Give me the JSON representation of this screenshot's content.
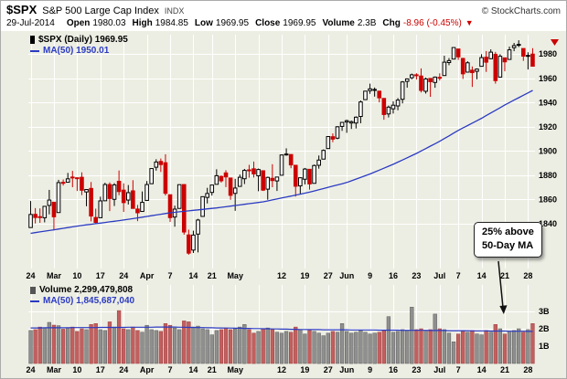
{
  "header": {
    "symbol": "$SPX",
    "title": "S&P 500 Large Cap Index",
    "exchange": "INDX",
    "source": "© StockCharts.com",
    "date": "29-Jul-2014",
    "quote": {
      "open": {
        "label": "Open",
        "value": "1980.03"
      },
      "high": {
        "label": "High",
        "value": "1984.85"
      },
      "low": {
        "label": "Low",
        "value": "1969.95"
      },
      "close": {
        "label": "Close",
        "value": "1969.95"
      },
      "volume": {
        "label": "Volume",
        "value": "2.3B"
      },
      "chg": {
        "label": "Chg",
        "value": "-8.96 (-0.45%)",
        "direction": "down"
      }
    }
  },
  "price_pane": {
    "legend_symbol": "$SPX (Daily) 1969.95",
    "legend_ma": "MA(50) 1950.01"
  },
  "volume_pane": {
    "legend_volume": "Volume 2,299,479,808",
    "legend_ma": "MA(50) 1,845,687,040"
  },
  "annotation": {
    "line1": "25% above",
    "line2": "50-Day MA"
  },
  "colors": {
    "background": "#edeee3",
    "grid": "#ffffff",
    "up_candle": "#000000",
    "up_fill": "#ffffff",
    "down_candle": "#cc0000",
    "ma_line": "#2b3bc2",
    "vol_up": "#8f8f8f",
    "vol_down": "#c25f5f",
    "text": "#000000",
    "change_negative": "#cc0000"
  },
  "chart_data": {
    "type": "candlestick",
    "symbol": "$SPX",
    "timeframe": "Daily",
    "date_range": "24-Feb-2014 to 29-Jul-2014",
    "last_close": 1969.95,
    "price_axis": {
      "ticks": [
        1840,
        1860,
        1880,
        1900,
        1920,
        1940,
        1960,
        1980
      ],
      "range": [
        1803,
        1996
      ]
    },
    "volume_axis": {
      "unit": "billions",
      "ticks": [
        {
          "v": 1,
          "l": "1B"
        },
        {
          "v": 2,
          "l": "2B"
        },
        {
          "v": 3,
          "l": "3B"
        }
      ]
    },
    "x_ticks": [
      {
        "i": 0,
        "l": "24"
      },
      {
        "i": 5,
        "l": "Mar"
      },
      {
        "i": 10,
        "l": "10"
      },
      {
        "i": 15,
        "l": "17"
      },
      {
        "i": 20,
        "l": "24"
      },
      {
        "i": 25,
        "l": "Apr"
      },
      {
        "i": 30,
        "l": "7"
      },
      {
        "i": 35,
        "l": "14"
      },
      {
        "i": 39,
        "l": "21"
      },
      {
        "i": 44,
        "l": "May"
      },
      {
        "i": 49,
        "l": ""
      },
      {
        "i": 54,
        "l": "12"
      },
      {
        "i": 59,
        "l": "19"
      },
      {
        "i": 64,
        "l": "27"
      },
      {
        "i": 68,
        "l": "Jun"
      },
      {
        "i": 73,
        "l": "9"
      },
      {
        "i": 78,
        "l": "16"
      },
      {
        "i": 83,
        "l": "23"
      },
      {
        "i": 88,
        "l": "Jul"
      },
      {
        "i": 92,
        "l": "7"
      },
      {
        "i": 97,
        "l": "14"
      },
      {
        "i": 102,
        "l": "21"
      },
      {
        "i": 107,
        "l": "28"
      }
    ],
    "candles": [
      [
        1836.8,
        1858.7,
        1836.8,
        1847.6
      ],
      [
        1847.7,
        1852.9,
        1840.2,
        1845.1
      ],
      [
        1845.8,
        1852.6,
        1840.7,
        1845.2
      ],
      [
        1844.9,
        1854.5,
        1841.1,
        1854.3
      ],
      [
        1855.1,
        1867.9,
        1847.7,
        1859.5
      ],
      [
        1857.7,
        1857.7,
        1834.4,
        1845.7
      ],
      [
        1849.2,
        1876.2,
        1849.2,
        1873.9
      ],
      [
        1874.1,
        1876.5,
        1871.5,
        1873.8
      ],
      [
        1874.2,
        1881.9,
        1874.2,
        1877.0
      ],
      [
        1878.5,
        1883.6,
        1870.1,
        1878.0
      ],
      [
        1877.9,
        1877.9,
        1867.0,
        1877.2
      ],
      [
        1878.3,
        1882.4,
        1863.6,
        1867.6
      ],
      [
        1866.2,
        1868.4,
        1854.4,
        1868.2
      ],
      [
        1869.1,
        1874.4,
        1841.9,
        1846.3
      ],
      [
        1845.1,
        1852.4,
        1839.6,
        1841.1
      ],
      [
        1844.9,
        1862.3,
        1844.9,
        1858.8
      ],
      [
        1858.9,
        1873.8,
        1858.9,
        1872.3
      ],
      [
        1872.3,
        1874.1,
        1850.4,
        1860.8
      ],
      [
        1860.1,
        1873.5,
        1854.6,
        1872.0
      ],
      [
        1875.0,
        1883.9,
        1863.5,
        1866.5
      ],
      [
        1867.7,
        1873.3,
        1849.7,
        1857.4
      ],
      [
        1859.5,
        1871.9,
        1855.8,
        1865.6
      ],
      [
        1867.1,
        1875.9,
        1852.5,
        1852.6
      ],
      [
        1852.1,
        1855.5,
        1842.1,
        1849.0
      ],
      [
        1850.1,
        1866.6,
        1850.1,
        1857.6
      ],
      [
        1859.2,
        1875.2,
        1859.2,
        1872.3
      ],
      [
        1873.0,
        1885.8,
        1873.0,
        1885.5
      ],
      [
        1886.6,
        1893.2,
        1883.8,
        1890.9
      ],
      [
        1891.4,
        1893.8,
        1882.7,
        1888.8
      ],
      [
        1890.3,
        1897.3,
        1863.3,
        1865.1
      ],
      [
        1863.9,
        1864.0,
        1841.5,
        1845.0
      ],
      [
        1845.5,
        1854.9,
        1837.5,
        1852.0
      ],
      [
        1852.6,
        1872.4,
        1852.4,
        1872.2
      ],
      [
        1872.3,
        1872.5,
        1830.9,
        1833.1
      ],
      [
        1830.7,
        1835.1,
        1814.4,
        1815.7
      ],
      [
        1818.2,
        1834.2,
        1815.8,
        1830.6
      ],
      [
        1831.4,
        1844.0,
        1816.3,
        1843.0
      ],
      [
        1846.0,
        1862.3,
        1846.0,
        1862.3
      ],
      [
        1861.7,
        1869.6,
        1856.7,
        1864.9
      ],
      [
        1865.8,
        1871.9,
        1863.2,
        1871.9
      ],
      [
        1872.5,
        1884.9,
        1872.5,
        1879.6
      ],
      [
        1879.0,
        1879.8,
        1873.9,
        1875.4
      ],
      [
        1881.9,
        1884.1,
        1870.2,
        1878.6
      ],
      [
        1877.7,
        1877.7,
        1859.7,
        1863.4
      ],
      [
        1865.0,
        1877.0,
        1850.6,
        1869.4
      ],
      [
        1870.8,
        1880.6,
        1870.8,
        1878.3
      ],
      [
        1877.1,
        1885.2,
        1872.7,
        1884.0
      ],
      [
        1884.4,
        1888.6,
        1878.0,
        1883.7
      ],
      [
        1885.3,
        1891.3,
        1878.1,
        1881.1
      ],
      [
        1879.5,
        1885.5,
        1866.8,
        1884.7
      ],
      [
        1883.7,
        1883.7,
        1867.0,
        1867.7
      ],
      [
        1868.5,
        1878.8,
        1859.8,
        1878.2
      ],
      [
        1877.4,
        1889.1,
        1870.1,
        1875.6
      ],
      [
        1875.3,
        1878.6,
        1867.0,
        1878.5
      ],
      [
        1880.0,
        1897.1,
        1880.0,
        1896.7
      ],
      [
        1896.8,
        1902.2,
        1896.1,
        1897.5
      ],
      [
        1897.1,
        1897.1,
        1885.8,
        1888.5
      ],
      [
        1888.2,
        1888.2,
        1862.4,
        1870.9
      ],
      [
        1871.2,
        1878.3,
        1864.1,
        1877.9
      ],
      [
        1876.7,
        1886.0,
        1872.4,
        1885.1
      ],
      [
        1884.9,
        1884.9,
        1868.1,
        1872.8
      ],
      [
        1873.3,
        1888.8,
        1873.3,
        1888.0
      ],
      [
        1888.2,
        1896.3,
        1885.4,
        1892.5
      ],
      [
        1893.3,
        1901.3,
        1893.3,
        1900.5
      ],
      [
        1902.0,
        1912.3,
        1902.0,
        1911.9
      ],
      [
        1911.8,
        1914.5,
        1907.3,
        1909.8
      ],
      [
        1910.6,
        1920.5,
        1909.7,
        1920.0
      ],
      [
        1920.3,
        1924.0,
        1916.6,
        1923.6
      ],
      [
        1923.9,
        1925.9,
        1915.0,
        1925.0
      ],
      [
        1923.1,
        1925.1,
        1918.2,
        1924.2
      ],
      [
        1923.1,
        1928.6,
        1918.6,
        1927.9
      ],
      [
        1928.5,
        1941.7,
        1922.9,
        1940.5
      ],
      [
        1942.4,
        1949.4,
        1942.4,
        1949.4
      ],
      [
        1949.8,
        1955.6,
        1947.2,
        1951.3
      ],
      [
        1950.3,
        1952.4,
        1944.9,
        1950.8
      ],
      [
        1949.4,
        1949.4,
        1940.1,
        1943.9
      ],
      [
        1943.4,
        1943.4,
        1925.8,
        1930.1
      ],
      [
        1930.6,
        1937.5,
        1927.7,
        1936.2
      ],
      [
        1934.8,
        1941.0,
        1930.9,
        1937.8
      ],
      [
        1937.2,
        1943.7,
        1933.6,
        1942.0
      ],
      [
        1942.7,
        1957.7,
        1939.3,
        1957.0
      ],
      [
        1957.5,
        1959.9,
        1952.3,
        1959.5
      ],
      [
        1960.5,
        1963.9,
        1959.2,
        1962.9
      ],
      [
        1962.9,
        1964.2,
        1959.0,
        1962.6
      ],
      [
        1961.9,
        1968.2,
        1948.3,
        1950.0
      ],
      [
        1949.3,
        1960.6,
        1947.4,
        1959.5
      ],
      [
        1959.9,
        1959.9,
        1944.7,
        1957.2
      ],
      [
        1956.6,
        1961.5,
        1952.2,
        1961.0
      ],
      [
        1960.8,
        1964.1,
        1958.2,
        1960.2
      ],
      [
        1962.3,
        1978.6,
        1962.3,
        1973.3
      ],
      [
        1973.0,
        1976.7,
        1970.8,
        1974.6
      ],
      [
        1975.9,
        1985.6,
        1975.9,
        1985.4
      ],
      [
        1984.2,
        1984.2,
        1975.2,
        1977.7
      ],
      [
        1976.4,
        1976.9,
        1959.5,
        1963.7
      ],
      [
        1965.1,
        1974.1,
        1965.1,
        1972.8
      ],
      [
        1966.7,
        1969.8,
        1952.9,
        1964.7
      ],
      [
        1965.8,
        1968.2,
        1959.2,
        1967.6
      ],
      [
        1969.9,
        1979.9,
        1969.9,
        1977.1
      ],
      [
        1977.4,
        1982.5,
        1965.3,
        1973.3
      ],
      [
        1976.2,
        1983.9,
        1975.7,
        1981.6
      ],
      [
        1979.8,
        1981.8,
        1955.6,
        1958.1
      ],
      [
        1961.0,
        1979.9,
        1960.7,
        1978.2
      ],
      [
        1976.9,
        1976.9,
        1965.8,
        1973.6
      ],
      [
        1975.6,
        1986.2,
        1975.6,
        1983.5
      ],
      [
        1985.3,
        1989.2,
        1982.4,
        1987.0
      ],
      [
        1988.0,
        1991.4,
        1985.8,
        1988.0
      ],
      [
        1984.6,
        1984.6,
        1974.4,
        1978.3
      ],
      [
        1978.3,
        1981.5,
        1967.3,
        1978.9
      ],
      [
        1980.0,
        1984.9,
        1969.9,
        1970.0
      ]
    ],
    "ma50": [
      1832.0,
      1832.6,
      1833.2,
      1833.8,
      1834.4,
      1835.0,
      1835.6,
      1836.2,
      1836.8,
      1837.4,
      1838.0,
      1838.5,
      1839.0,
      1839.5,
      1840.0,
      1840.5,
      1841.0,
      1841.5,
      1842.0,
      1842.5,
      1843.0,
      1843.6,
      1844.2,
      1844.8,
      1845.4,
      1846.0,
      1846.6,
      1847.2,
      1847.8,
      1848.4,
      1849.0,
      1849.4,
      1849.8,
      1850.2,
      1850.6,
      1851.0,
      1851.4,
      1851.8,
      1852.2,
      1852.6,
      1853.0,
      1853.5,
      1854.0,
      1854.5,
      1855.0,
      1855.5,
      1856.0,
      1856.5,
      1857.0,
      1857.5,
      1858.0,
      1858.8,
      1859.6,
      1860.4,
      1861.2,
      1862.0,
      1862.8,
      1863.6,
      1864.4,
      1865.2,
      1866.0,
      1867.0,
      1868.0,
      1869.0,
      1870.0,
      1871.0,
      1872.0,
      1873.0,
      1874.0,
      1875.4,
      1876.8,
      1878.2,
      1879.6,
      1881.0,
      1882.6,
      1884.2,
      1885.8,
      1887.4,
      1889.0,
      1890.8,
      1892.6,
      1894.4,
      1896.2,
      1898.0,
      1900.0,
      1902.0,
      1904.0,
      1906.0,
      1908.0,
      1910.3,
      1912.5,
      1914.8,
      1917.0,
      1919.0,
      1921.0,
      1923.0,
      1925.0,
      1927.0,
      1929.2,
      1931.4,
      1933.6,
      1935.8,
      1938.0,
      1940.0,
      1942.0,
      1944.0,
      1946.0,
      1948.0,
      1950.01
    ],
    "volume": [
      1.9,
      1.95,
      2.1,
      2.05,
      2.37,
      2.21,
      2.18,
      1.98,
      2.05,
      2.1,
      1.85,
      2.0,
      1.95,
      2.25,
      2.3,
      1.95,
      1.9,
      2.4,
      2.1,
      3.05,
      2.0,
      1.95,
      2.1,
      1.9,
      1.8,
      2.2,
      1.95,
      1.9,
      1.85,
      2.3,
      2.2,
      2.05,
      1.95,
      2.45,
      2.4,
      2.1,
      2.15,
      2.0,
      1.95,
      1.65,
      1.9,
      1.95,
      2.05,
      1.95,
      2.0,
      2.1,
      2.25,
      1.95,
      1.75,
      1.85,
      2.0,
      2.05,
      1.95,
      1.8,
      1.75,
      1.85,
      1.8,
      2.1,
      1.95,
      1.7,
      1.9,
      1.85,
      1.75,
      1.6,
      1.75,
      1.85,
      1.8,
      2.3,
      1.85,
      1.75,
      1.8,
      1.9,
      1.8,
      1.7,
      1.75,
      1.8,
      1.9,
      2.7,
      1.8,
      1.85,
      1.95,
      1.9,
      3.25,
      1.95,
      2.0,
      1.9,
      1.95,
      2.85,
      2.0,
      1.95,
      1.75,
      1.25,
      1.7,
      1.85,
      1.8,
      1.9,
      1.7,
      1.65,
      1.9,
      1.8,
      2.25,
      2.0,
      1.7,
      1.85,
      1.9,
      2.0,
      1.8,
      1.95,
      2.3
    ],
    "volume_ma50": [
      2.05,
      2.05,
      2.05,
      2.06,
      2.06,
      2.06,
      2.06,
      2.06,
      2.06,
      2.07,
      2.07,
      2.07,
      2.07,
      2.07,
      2.07,
      2.08,
      2.08,
      2.08,
      2.08,
      2.08,
      2.08,
      2.09,
      2.09,
      2.09,
      2.09,
      2.09,
      2.09,
      2.1,
      2.1,
      2.1,
      2.1,
      2.1,
      2.09,
      2.09,
      2.08,
      2.08,
      2.07,
      2.07,
      2.06,
      2.06,
      2.05,
      2.05,
      2.04,
      2.04,
      2.03,
      2.03,
      2.02,
      2.02,
      2.01,
      2.01,
      2.0,
      2.0,
      1.99,
      1.99,
      1.98,
      1.98,
      1.97,
      1.97,
      1.96,
      1.96,
      1.95,
      1.95,
      1.95,
      1.94,
      1.94,
      1.94,
      1.94,
      1.94,
      1.94,
      1.93,
      1.93,
      1.93,
      1.93,
      1.93,
      1.93,
      1.92,
      1.92,
      1.92,
      1.92,
      1.92,
      1.91,
      1.91,
      1.91,
      1.91,
      1.91,
      1.91,
      1.9,
      1.9,
      1.9,
      1.9,
      1.89,
      1.89,
      1.89,
      1.89,
      1.89,
      1.88,
      1.88,
      1.88,
      1.88,
      1.87,
      1.87,
      1.87,
      1.87,
      1.86,
      1.86,
      1.86,
      1.86,
      1.85,
      1.85
    ]
  }
}
